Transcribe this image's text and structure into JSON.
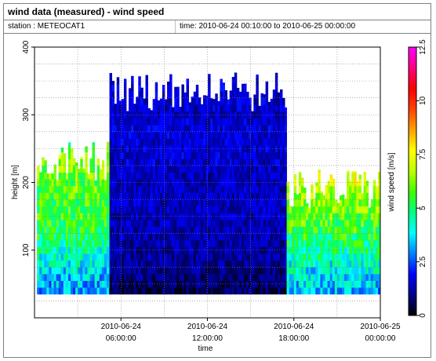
{
  "header": {
    "title": "wind data (measured) - wind speed",
    "station": "station : METEOCAT1",
    "time": "time: 2010-06-24 00:10:00 to 2010-06-25 00:00:00"
  },
  "chart_data": {
    "type": "heatmap",
    "xlabel": "time",
    "ylabel": "height [m]",
    "xlim": [
      0,
      24
    ],
    "ylim": [
      0,
      400
    ],
    "x_ticks": [
      {
        "value": 6,
        "line1": "2010-06-24",
        "line2": "06:00:00"
      },
      {
        "value": 12,
        "line1": "2010-06-24",
        "line2": "12:00:00"
      },
      {
        "value": 18,
        "line1": "2010-06-24",
        "line2": "18:00:00"
      },
      {
        "value": 24,
        "line1": "2010-06-25",
        "line2": "00:00:00"
      }
    ],
    "y_ticks": [
      100,
      200,
      300,
      400
    ],
    "grid": true,
    "colorbar": {
      "label": "wind speed [m/s]",
      "range": [
        0,
        12.5
      ],
      "ticks": [
        "0",
        "2.5",
        "5",
        "7.5",
        "10",
        "12.5"
      ],
      "colors": [
        "#000000",
        "#00008b",
        "#0000ff",
        "#0080ff",
        "#00ffff",
        "#00ff80",
        "#40ff00",
        "#c0ff00",
        "#ffff00",
        "#ffa000",
        "#ff4000",
        "#ff0000",
        "#ff0080",
        "#ff00ff"
      ]
    },
    "data_bottom_height": 35,
    "profiles": [
      {
        "t0": 0.17,
        "t1": 5.2,
        "top": 260,
        "speed": [
          3.2,
          3.6,
          4.4,
          5.1,
          5.5,
          5.7,
          6.0,
          6.6,
          5.2
        ]
      },
      {
        "t0": 5.2,
        "t1": 17.5,
        "top": 365,
        "speed": [
          0.6,
          0.9,
          1.1,
          1.2,
          1.3,
          1.4,
          1.4,
          1.3,
          1.5,
          1.5,
          1.6,
          1.4,
          1.5,
          1.6,
          1.4
        ]
      },
      {
        "t0": 17.5,
        "t1": 24.0,
        "top": 220,
        "speed": [
          3.4,
          3.8,
          4.6,
          5.2,
          5.8,
          6.3,
          7.0,
          7.6
        ]
      }
    ]
  }
}
